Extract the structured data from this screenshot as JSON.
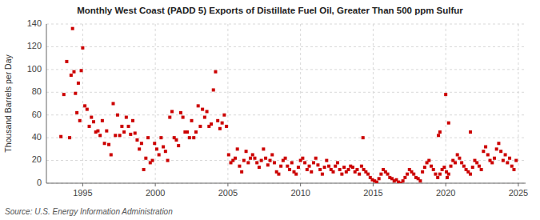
{
  "chart_data": {
    "type": "scatter",
    "title": "Monthly West Coast (PADD 5) Exports of Distillate Fuel Oil, Greater Than 500 ppm Sulfur",
    "ylabel": "Thousand Barrels per Day",
    "source": "Source: U.S. Energy Information Administration",
    "color": "#cc0000",
    "marker": "square",
    "grid": true,
    "xlim": [
      1992.5,
      2025.5
    ],
    "ylim": [
      0,
      140
    ],
    "xticks": [
      1995,
      2000,
      2005,
      2010,
      2015,
      2020,
      2025
    ],
    "yticks": [
      0,
      20,
      40,
      60,
      80,
      100,
      120,
      140
    ],
    "x": [
      1993.5,
      1993.7,
      1993.9,
      1994.1,
      1994.2,
      1994.3,
      1994.4,
      1994.5,
      1994.6,
      1994.7,
      1994.8,
      1994.9,
      1995.0,
      1995.15,
      1995.3,
      1995.45,
      1995.6,
      1995.75,
      1995.9,
      1996.05,
      1996.2,
      1996.35,
      1996.5,
      1996.65,
      1996.8,
      1996.95,
      1997.1,
      1997.25,
      1997.4,
      1997.55,
      1997.7,
      1997.85,
      1998.0,
      1998.15,
      1998.3,
      1998.45,
      1998.6,
      1998.75,
      1998.9,
      1999.05,
      1999.2,
      1999.35,
      1999.5,
      1999.65,
      1999.8,
      1999.95,
      2000.1,
      2000.25,
      2000.4,
      2000.55,
      2000.7,
      2000.85,
      2001.0,
      2001.15,
      2001.3,
      2001.45,
      2001.6,
      2001.75,
      2001.9,
      2002.05,
      2002.2,
      2002.35,
      2002.5,
      2002.65,
      2002.8,
      2002.95,
      2003.1,
      2003.25,
      2003.4,
      2003.55,
      2003.7,
      2003.85,
      2004.0,
      2004.15,
      2004.3,
      2004.45,
      2004.6,
      2004.75,
      2004.9,
      2005.05,
      2005.2,
      2005.35,
      2005.5,
      2005.65,
      2005.8,
      2005.95,
      2006.1,
      2006.25,
      2006.4,
      2006.55,
      2006.7,
      2006.85,
      2007.0,
      2007.15,
      2007.3,
      2007.45,
      2007.6,
      2007.75,
      2007.9,
      2008.05,
      2008.2,
      2008.35,
      2008.5,
      2008.65,
      2008.8,
      2008.95,
      2009.1,
      2009.25,
      2009.4,
      2009.55,
      2009.7,
      2009.85,
      2010.0,
      2010.15,
      2010.3,
      2010.45,
      2010.6,
      2010.75,
      2010.9,
      2011.05,
      2011.2,
      2011.35,
      2011.5,
      2011.65,
      2011.8,
      2011.95,
      2012.1,
      2012.25,
      2012.4,
      2012.55,
      2012.7,
      2012.85,
      2013.0,
      2013.15,
      2013.3,
      2013.45,
      2013.6,
      2013.75,
      2013.9,
      2014.05,
      2014.2,
      2014.35,
      2014.5,
      2014.65,
      2014.8,
      2014.95,
      2015.1,
      2015.25,
      2015.4,
      2015.55,
      2015.7,
      2015.85,
      2016.0,
      2016.15,
      2016.3,
      2016.45,
      2016.6,
      2016.75,
      2016.9,
      2017.05,
      2017.2,
      2017.35,
      2017.5,
      2017.65,
      2017.8,
      2017.95,
      2018.1,
      2018.25,
      2018.4,
      2018.55,
      2018.7,
      2018.85,
      2019.0,
      2019.15,
      2019.3,
      2019.45,
      2019.6,
      2019.75,
      2019.9,
      2020.05,
      2020.2,
      2020.35,
      2020.5,
      2020.65,
      2020.8,
      2020.95,
      2021.1,
      2021.25,
      2021.4,
      2021.55,
      2021.7,
      2021.85,
      2022.0,
      2022.15,
      2022.3,
      2022.45,
      2022.6,
      2022.75,
      2022.9,
      2023.05,
      2023.2,
      2023.35,
      2023.5,
      2023.65,
      2023.8,
      2023.95,
      2024.1,
      2024.25,
      2024.4,
      2024.55,
      2024.7,
      2024.85,
      2020.0,
      2020.1,
      2020.2,
      2019.5,
      2019.6,
      2014.3,
      2021.7
    ],
    "values": [
      41,
      78,
      107,
      40,
      95,
      136,
      98,
      79,
      62,
      88,
      55,
      99,
      119,
      68,
      65,
      50,
      58,
      54,
      45,
      46,
      42,
      55,
      35,
      46,
      34,
      25,
      70,
      42,
      60,
      42,
      50,
      45,
      58,
      50,
      43,
      55,
      44,
      38,
      30,
      35,
      12,
      22,
      40,
      18,
      20,
      35,
      30,
      25,
      40,
      32,
      28,
      20,
      58,
      63,
      40,
      38,
      33,
      62,
      58,
      45,
      45,
      40,
      55,
      40,
      45,
      68,
      50,
      65,
      58,
      63,
      50,
      52,
      82,
      98,
      55,
      48,
      53,
      60,
      50,
      25,
      18,
      20,
      22,
      30,
      15,
      10,
      20,
      28,
      18,
      22,
      25,
      22,
      18,
      14,
      20,
      30,
      22,
      16,
      20,
      25,
      18,
      10,
      8,
      15,
      20,
      22,
      15,
      12,
      18,
      10,
      8,
      14,
      20,
      22,
      18,
      12,
      15,
      10,
      18,
      22,
      16,
      12,
      8,
      14,
      20,
      15,
      12,
      10,
      15,
      18,
      12,
      8,
      14,
      10,
      12,
      15,
      14,
      10,
      12,
      8,
      15,
      12,
      10,
      8,
      5,
      3,
      2,
      1,
      4,
      8,
      12,
      10,
      8,
      5,
      4,
      2,
      3,
      1,
      0,
      2,
      5,
      8,
      12,
      10,
      8,
      5,
      4,
      2,
      10,
      14,
      18,
      20,
      15,
      12,
      8,
      5,
      8,
      12,
      14,
      10,
      8,
      15,
      20,
      18,
      25,
      22,
      18,
      15,
      12,
      10,
      8,
      14,
      20,
      18,
      15,
      12,
      28,
      32,
      25,
      20,
      18,
      22,
      30,
      35,
      28,
      20,
      25,
      18,
      22,
      15,
      12,
      20,
      78,
      5,
      53,
      42,
      45,
      40,
      45
    ]
  }
}
